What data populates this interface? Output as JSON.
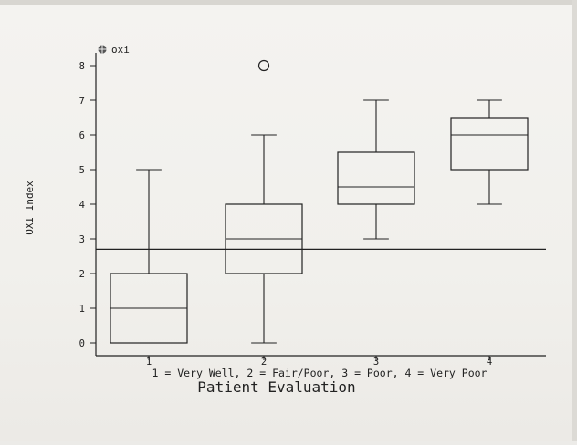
{
  "chart_data": {
    "type": "box",
    "legend": {
      "label": "oxi",
      "placement": "top-left"
    },
    "ylabel": "OXI Index",
    "xlabel": "Patient Evaluation",
    "x_note": "1 = Very Well, 2 = Fair/Poor, 3 = Poor, 4 = Very Poor",
    "categories": [
      "1",
      "2",
      "3",
      "4"
    ],
    "yticks": [
      0,
      1,
      2,
      3,
      4,
      5,
      6,
      7,
      8
    ],
    "ylim": [
      -0.3,
      8.2
    ],
    "reference_line": 2.7,
    "boxes": [
      {
        "category": "1",
        "min": 0,
        "q1": 0,
        "median": 1,
        "q3": 2,
        "max": 5,
        "outliers": []
      },
      {
        "category": "2",
        "min": 0,
        "q1": 2,
        "median": 3,
        "q3": 4,
        "max": 6,
        "outliers": [
          8
        ]
      },
      {
        "category": "3",
        "min": 3,
        "q1": 4,
        "median": 4.5,
        "q3": 5.5,
        "max": 7,
        "outliers": []
      },
      {
        "category": "4",
        "min": 4,
        "q1": 5,
        "median": 6,
        "q3": 6.5,
        "max": 7,
        "outliers": []
      }
    ],
    "grid": false,
    "colors": {
      "ink": "#222222",
      "paper": "#f3f2ef"
    }
  }
}
